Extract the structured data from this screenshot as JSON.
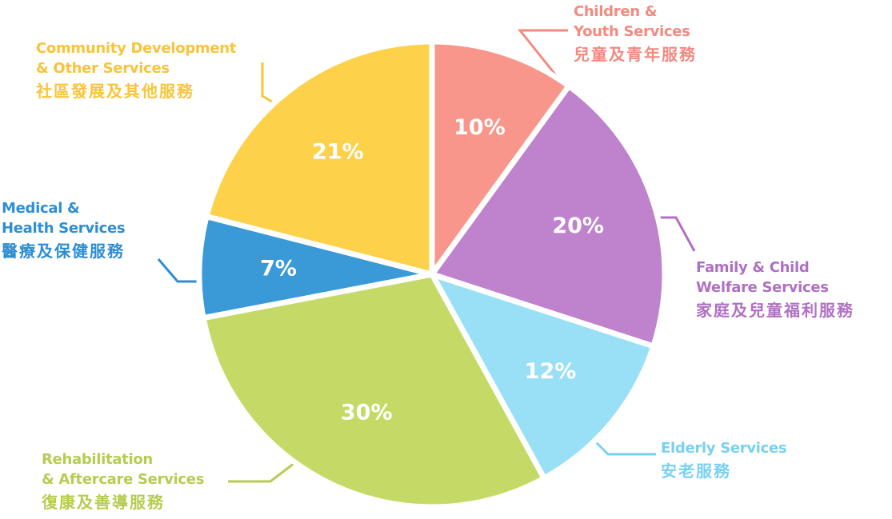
{
  "chart_data": {
    "type": "pie",
    "categories": [
      "Children &\nYouth Services",
      "Family & Child\nWelfare Services",
      "Elderly Services",
      "Rehabilitation\n& Aftercare Services",
      "Medical &\nHealth Services",
      "Community Development\n& Other Services"
    ],
    "categories_zh": [
      "兒童及青年服務",
      "家庭及兒童福利服務",
      "安老服務",
      "復康及善導服務",
      "醫療及保健服務",
      "社區發展及其他服務"
    ],
    "values": [
      10,
      20,
      12,
      30,
      7,
      21
    ],
    "value_labels": [
      "10%",
      "20%",
      "12%",
      "30%",
      "7%",
      "21%"
    ],
    "colors": [
      "#f9968b",
      "#bf82cc",
      "#99e0f7",
      "#c5da66",
      "#3a9ad8",
      "#fdd14a"
    ],
    "label_colors": [
      "#f28a80",
      "#b070c2",
      "#78d0f0",
      "#b6cc50",
      "#2d8ed3",
      "#f7c43a"
    ]
  }
}
